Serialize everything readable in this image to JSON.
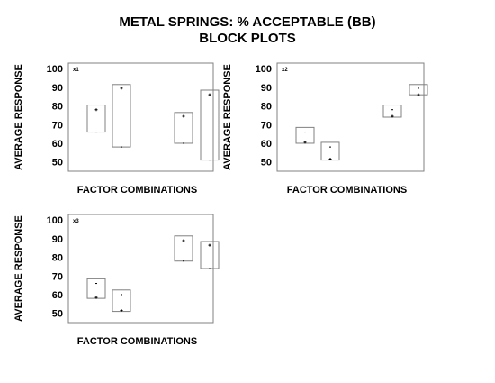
{
  "figure": {
    "title_line1": "METAL SPRINGS: % ACCEPTABLE (BB)",
    "title_line2": "BLOCK PLOTS"
  },
  "chart_data": [
    {
      "type": "block",
      "panel_tag": "x1",
      "xlabel": "FACTOR COMBINATIONS",
      "ylabel": "AVERAGE RESPONSE",
      "ylim": [
        45,
        103
      ],
      "yticks": [
        50,
        60,
        70,
        80,
        90,
        100
      ],
      "blocks": [
        {
          "low": 66,
          "high": 80.5,
          "plus": 78,
          "minus": 66
        },
        {
          "low": 58,
          "high": 91.5,
          "plus": 89.5,
          "minus": 58
        },
        {
          "low": 60,
          "high": 76.5,
          "plus": 74.5,
          "minus": 60
        },
        {
          "low": 51,
          "high": 88.5,
          "plus": 86,
          "minus": 51
        }
      ]
    },
    {
      "type": "block",
      "panel_tag": "x2",
      "xlabel": "FACTOR COMBINATIONS",
      "ylabel": "AVERAGE RESPONSE",
      "ylim": [
        45,
        103
      ],
      "yticks": [
        50,
        60,
        70,
        80,
        90,
        100
      ],
      "blocks": [
        {
          "low": 60,
          "high": 68.5,
          "plus": 60.5,
          "minus": 66
        },
        {
          "low": 51,
          "high": 60.5,
          "plus": 51.5,
          "minus": 58
        },
        {
          "low": 74,
          "high": 80.5,
          "plus": 74.5,
          "minus": 78
        },
        {
          "low": 86,
          "high": 91.5,
          "plus": 86,
          "minus": 89.5
        }
      ]
    },
    {
      "type": "block",
      "panel_tag": "x3",
      "xlabel": "FACTOR COMBINATIONS",
      "ylabel": "AVERAGE RESPONSE",
      "ylim": [
        45,
        103
      ],
      "yticks": [
        50,
        60,
        70,
        80,
        90,
        100
      ],
      "blocks": [
        {
          "low": 58,
          "high": 68.5,
          "plus": 58.5,
          "minus": 66
        },
        {
          "low": 51,
          "high": 62.5,
          "plus": 51.5,
          "minus": 60
        },
        {
          "low": 78,
          "high": 91.5,
          "plus": 89,
          "minus": 78
        },
        {
          "low": 74,
          "high": 88.5,
          "plus": 86.5,
          "minus": 74
        }
      ]
    }
  ]
}
